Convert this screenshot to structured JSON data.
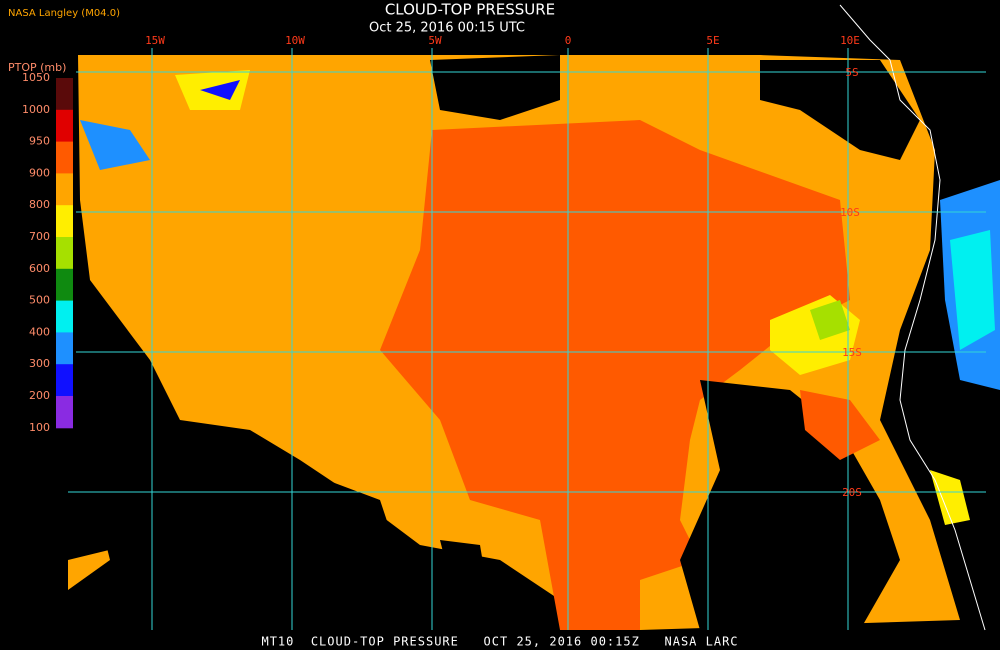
{
  "header": {
    "title": "CLOUD-TOP PRESSURE",
    "subtitle": "Oct 25, 2016 00:15 UTC",
    "source": "NASA Langley (M04.0)"
  },
  "map": {
    "lon_labels": [
      "15W",
      "10W",
      "5W",
      "0",
      "5E",
      "10E"
    ],
    "lat_labels": [
      "5S",
      "10S",
      "15S",
      "20S"
    ]
  },
  "colorbar": {
    "title": "PTOP (mb)",
    "labels": [
      1050,
      1000,
      950,
      900,
      800,
      700,
      600,
      500,
      400,
      300,
      200,
      100
    ],
    "colors": [
      "#5a0a0a",
      "#e00000",
      "#ff5a00",
      "#ffa500",
      "#ffee00",
      "#a6e000",
      "#0f8a10",
      "#00f0f0",
      "#1e90ff",
      "#1010ff",
      "#8a2be2"
    ]
  },
  "footer": {
    "text": "MT10  CLOUD-TOP PRESSURE   OCT 25, 2016 00:15Z   NASA LARC"
  }
}
